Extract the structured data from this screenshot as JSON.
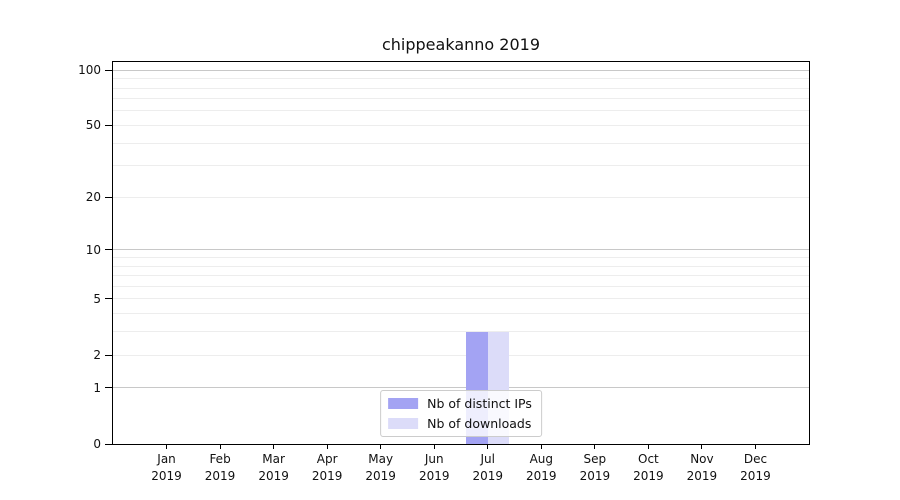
{
  "chart_data": {
    "type": "bar",
    "title": "chippeakanno 2019",
    "categories": [
      "Jan 2019",
      "Feb 2019",
      "Mar 2019",
      "Apr 2019",
      "May 2019",
      "Jun 2019",
      "Jul 2019",
      "Aug 2019",
      "Sep 2019",
      "Oct 2019",
      "Nov 2019",
      "Dec 2019"
    ],
    "series": [
      {
        "name": "Nb of distinct IPs",
        "color": "#a3a3f3",
        "values": [
          0,
          0,
          0,
          0,
          0,
          0,
          3,
          0,
          0,
          0,
          0,
          0
        ]
      },
      {
        "name": "Nb of downloads",
        "color": "#dcdcf9",
        "values": [
          0,
          0,
          0,
          0,
          0,
          0,
          3,
          0,
          0,
          0,
          0,
          0
        ]
      }
    ],
    "xlabel": "",
    "ylabel": "",
    "yscale": "log1p",
    "y_ticks": [
      0,
      1,
      2,
      5,
      10,
      20,
      50,
      100
    ],
    "y_major_gridlines": [
      1,
      10,
      100
    ],
    "y_minor_gridlines": [
      2,
      3,
      4,
      5,
      6,
      7,
      8,
      9,
      20,
      30,
      40,
      50,
      60,
      70,
      80,
      90
    ],
    "y_top_log1p": 2.048,
    "grid": "horizontal",
    "legend_position": "inside-bottom-center"
  },
  "colors": {
    "background": "#ffffff",
    "axis": "#000000",
    "grid_major": "#c8c8c8",
    "grid_minor": "#ededed",
    "legend_border": "#cccccc",
    "text": "#111111"
  }
}
